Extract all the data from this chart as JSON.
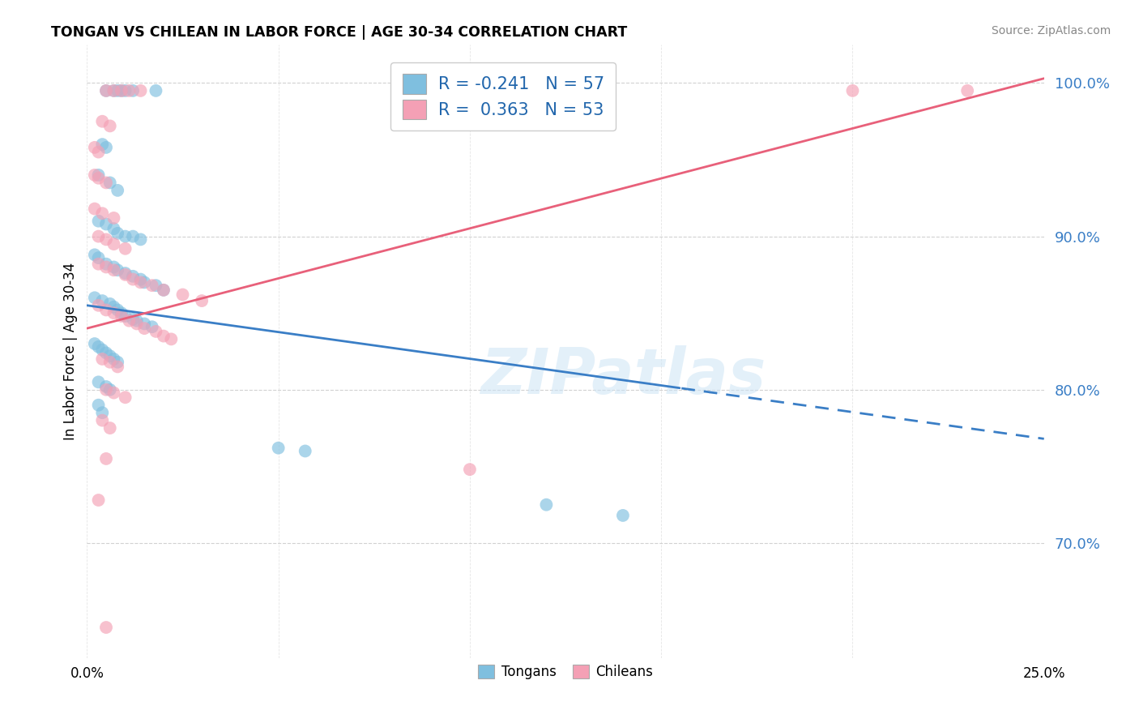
{
  "title": "TONGAN VS CHILEAN IN LABOR FORCE | AGE 30-34 CORRELATION CHART",
  "source": "Source: ZipAtlas.com",
  "ylabel": "In Labor Force | Age 30-34",
  "yticks": [
    0.7,
    0.8,
    0.9,
    1.0
  ],
  "ytick_labels": [
    "70.0%",
    "80.0%",
    "90.0%",
    "100.0%"
  ],
  "xmin": 0.0,
  "xmax": 0.25,
  "ymin": 0.625,
  "ymax": 1.025,
  "watermark": "ZIPatlas",
  "legend_blue_label": "Tongans",
  "legend_pink_label": "Chileans",
  "R_blue": -0.241,
  "N_blue": 57,
  "R_pink": 0.363,
  "N_pink": 53,
  "blue_color": "#7fbfdf",
  "pink_color": "#f4a0b5",
  "blue_line_color": "#3a7ec6",
  "pink_line_color": "#e8607a",
  "blue_line_x0": 0.0,
  "blue_line_y0": 0.855,
  "blue_line_x1": 0.25,
  "blue_line_y1": 0.768,
  "blue_line_solid_end": 0.155,
  "pink_line_x0": 0.0,
  "pink_line_y0": 0.84,
  "pink_line_x1": 0.25,
  "pink_line_y1": 1.003,
  "blue_scatter": [
    [
      0.005,
      0.995
    ],
    [
      0.007,
      0.995
    ],
    [
      0.008,
      0.995
    ],
    [
      0.009,
      0.995
    ],
    [
      0.01,
      0.995
    ],
    [
      0.012,
      0.995
    ],
    [
      0.018,
      0.995
    ],
    [
      0.004,
      0.96
    ],
    [
      0.005,
      0.958
    ],
    [
      0.003,
      0.94
    ],
    [
      0.006,
      0.935
    ],
    [
      0.008,
      0.93
    ],
    [
      0.003,
      0.91
    ],
    [
      0.005,
      0.908
    ],
    [
      0.007,
      0.905
    ],
    [
      0.008,
      0.902
    ],
    [
      0.01,
      0.9
    ],
    [
      0.012,
      0.9
    ],
    [
      0.014,
      0.898
    ],
    [
      0.002,
      0.888
    ],
    [
      0.003,
      0.886
    ],
    [
      0.005,
      0.882
    ],
    [
      0.007,
      0.88
    ],
    [
      0.008,
      0.878
    ],
    [
      0.01,
      0.876
    ],
    [
      0.012,
      0.874
    ],
    [
      0.014,
      0.872
    ],
    [
      0.015,
      0.87
    ],
    [
      0.018,
      0.868
    ],
    [
      0.02,
      0.865
    ],
    [
      0.002,
      0.86
    ],
    [
      0.004,
      0.858
    ],
    [
      0.006,
      0.856
    ],
    [
      0.007,
      0.854
    ],
    [
      0.008,
      0.852
    ],
    [
      0.009,
      0.85
    ],
    [
      0.01,
      0.848
    ],
    [
      0.012,
      0.846
    ],
    [
      0.013,
      0.845
    ],
    [
      0.015,
      0.843
    ],
    [
      0.017,
      0.841
    ],
    [
      0.002,
      0.83
    ],
    [
      0.003,
      0.828
    ],
    [
      0.004,
      0.826
    ],
    [
      0.005,
      0.824
    ],
    [
      0.006,
      0.822
    ],
    [
      0.007,
      0.82
    ],
    [
      0.008,
      0.818
    ],
    [
      0.003,
      0.805
    ],
    [
      0.005,
      0.802
    ],
    [
      0.006,
      0.8
    ],
    [
      0.003,
      0.79
    ],
    [
      0.004,
      0.785
    ],
    [
      0.05,
      0.762
    ],
    [
      0.057,
      0.76
    ],
    [
      0.12,
      0.725
    ],
    [
      0.14,
      0.718
    ]
  ],
  "pink_scatter": [
    [
      0.005,
      0.995
    ],
    [
      0.007,
      0.995
    ],
    [
      0.009,
      0.995
    ],
    [
      0.011,
      0.995
    ],
    [
      0.014,
      0.995
    ],
    [
      0.2,
      0.995
    ],
    [
      0.23,
      0.995
    ],
    [
      0.004,
      0.975
    ],
    [
      0.006,
      0.972
    ],
    [
      0.002,
      0.958
    ],
    [
      0.003,
      0.955
    ],
    [
      0.002,
      0.94
    ],
    [
      0.003,
      0.938
    ],
    [
      0.005,
      0.935
    ],
    [
      0.002,
      0.918
    ],
    [
      0.004,
      0.915
    ],
    [
      0.007,
      0.912
    ],
    [
      0.003,
      0.9
    ],
    [
      0.005,
      0.898
    ],
    [
      0.007,
      0.895
    ],
    [
      0.01,
      0.892
    ],
    [
      0.003,
      0.882
    ],
    [
      0.005,
      0.88
    ],
    [
      0.007,
      0.878
    ],
    [
      0.01,
      0.875
    ],
    [
      0.012,
      0.872
    ],
    [
      0.014,
      0.87
    ],
    [
      0.017,
      0.868
    ],
    [
      0.02,
      0.865
    ],
    [
      0.025,
      0.862
    ],
    [
      0.03,
      0.858
    ],
    [
      0.003,
      0.855
    ],
    [
      0.005,
      0.852
    ],
    [
      0.007,
      0.85
    ],
    [
      0.009,
      0.848
    ],
    [
      0.011,
      0.845
    ],
    [
      0.013,
      0.843
    ],
    [
      0.015,
      0.84
    ],
    [
      0.018,
      0.838
    ],
    [
      0.02,
      0.835
    ],
    [
      0.022,
      0.833
    ],
    [
      0.004,
      0.82
    ],
    [
      0.006,
      0.818
    ],
    [
      0.008,
      0.815
    ],
    [
      0.005,
      0.8
    ],
    [
      0.007,
      0.798
    ],
    [
      0.01,
      0.795
    ],
    [
      0.004,
      0.78
    ],
    [
      0.006,
      0.775
    ],
    [
      0.005,
      0.755
    ],
    [
      0.003,
      0.728
    ],
    [
      0.005,
      0.645
    ],
    [
      0.1,
      0.748
    ]
  ]
}
